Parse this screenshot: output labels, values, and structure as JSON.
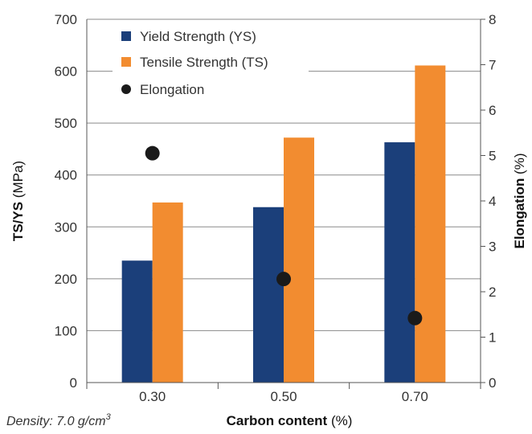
{
  "chart_data": {
    "type": "bar",
    "categories": [
      "0.30",
      "0.50",
      "0.70"
    ],
    "series": [
      {
        "name": "Yield Strength (YS)",
        "type": "bar",
        "axis": "left",
        "color": "#1b3f7a",
        "values": [
          235,
          338,
          463
        ]
      },
      {
        "name": "Tensile Strength (TS)",
        "type": "bar",
        "axis": "left",
        "color": "#f28c30",
        "values": [
          347,
          472,
          611
        ]
      },
      {
        "name": "Elongation",
        "type": "scatter",
        "axis": "right",
        "color": "#1a1a1a",
        "values": [
          5.05,
          2.28,
          1.42
        ]
      }
    ],
    "xlabel": {
      "bold": "Carbon content",
      "normal": " (%)"
    },
    "ylabel": {
      "bold": "TS/YS",
      "normal": " (MPa)"
    },
    "y2label": {
      "bold": "Elongation",
      "normal": " (%)"
    },
    "ylim": [
      0,
      700
    ],
    "yticks": [
      "0",
      "100",
      "200",
      "300",
      "400",
      "500",
      "600",
      "700"
    ],
    "y2lim": [
      0,
      8
    ],
    "y2ticks": [
      "0",
      "1",
      "2",
      "3",
      "4",
      "5",
      "6",
      "7",
      "8"
    ],
    "grid": "horizontal",
    "legend_position": "top-left",
    "note": {
      "label": "Density: 7.0 g/cm",
      "sup": "3"
    }
  }
}
